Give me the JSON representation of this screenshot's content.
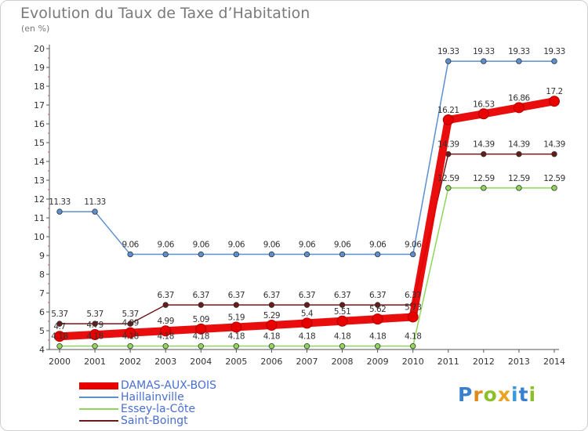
{
  "title": "Evolution du Taux de Taxe d’Habitation",
  "unit": "(en %)",
  "logo": {
    "letters": [
      {
        "ch": "P",
        "color": "#3a7fd0"
      },
      {
        "ch": "r",
        "color": "#e08a1e"
      },
      {
        "ch": "o",
        "color": "#8cbf2a"
      },
      {
        "ch": "x",
        "color": "#e8a420"
      },
      {
        "ch": "i",
        "color": "#3a9ad9"
      },
      {
        "ch": "t",
        "color": "#3a7fd0"
      },
      {
        "ch": "i",
        "color": "#8cbf2a"
      }
    ]
  },
  "chart_data": {
    "type": "line",
    "title": "Evolution du Taux de Taxe d’Habitation",
    "ylabel": "(en %)",
    "x": [
      "2000",
      "2001",
      "2002",
      "2003",
      "2004",
      "2005",
      "2006",
      "2007",
      "2008",
      "2009",
      "2010",
      "2011",
      "2012",
      "2013",
      "2014"
    ],
    "ylim": [
      4,
      20
    ],
    "yticks": [
      4,
      5,
      6,
      7,
      8,
      9,
      10,
      11,
      12,
      13,
      14,
      15,
      16,
      17,
      18,
      19,
      20
    ],
    "grid": false,
    "legend": "bottom-left",
    "series": [
      {
        "name": "DAMAS-AUX-BOIS",
        "color": "#e80000",
        "values": [
          4.7,
          4.79,
          4.89,
          4.99,
          5.09,
          5.19,
          5.29,
          5.4,
          5.51,
          5.62,
          5.73,
          16.21,
          16.53,
          16.86,
          17.2
        ],
        "labels": [
          "4.7",
          "4.79",
          "4.89",
          "4.99",
          "5.09",
          "5.19",
          "5.29",
          "5.4",
          "5.51",
          "5.62",
          "5.73",
          "16.21",
          "16.53",
          "16.86",
          "17.2"
        ]
      },
      {
        "name": "Haillainville",
        "color": "#5b8fd0",
        "values": [
          11.33,
          11.33,
          9.06,
          9.06,
          9.06,
          9.06,
          9.06,
          9.06,
          9.06,
          9.06,
          9.06,
          19.33,
          19.33,
          19.33,
          19.33
        ],
        "labels": [
          "11.33",
          "11.33",
          "9.06",
          "9.06",
          "9.06",
          "9.06",
          "9.06",
          "9.06",
          "9.06",
          "9.06",
          "9.06",
          "19.33",
          "19.33",
          "19.33",
          "19.33"
        ]
      },
      {
        "name": "Essey-la-Côte",
        "color": "#8fd65a",
        "values": [
          4.18,
          4.18,
          4.18,
          4.18,
          4.18,
          4.18,
          4.18,
          4.18,
          4.18,
          4.18,
          4.18,
          12.59,
          12.59,
          12.59,
          12.59
        ],
        "labels": [
          "4.18",
          "4.18",
          "4.18",
          "4.18",
          "4.18",
          "4.18",
          "4.18",
          "4.18",
          "4.18",
          "4.18",
          "4.18",
          "12.59",
          "12.59",
          "12.59",
          "12.59"
        ]
      },
      {
        "name": "Saint-Boingt",
        "color": "#6b1a1a",
        "values": [
          5.37,
          5.37,
          5.37,
          6.37,
          6.37,
          6.37,
          6.37,
          6.37,
          6.37,
          6.37,
          6.37,
          14.39,
          14.39,
          14.39,
          14.39
        ],
        "labels": [
          "5.37",
          "5.37",
          "5.37",
          "6.37",
          "6.37",
          "6.37",
          "6.37",
          "6.37",
          "6.37",
          "6.37",
          "6.37",
          "14.39",
          "14.39",
          "14.39",
          "14.39"
        ]
      }
    ]
  }
}
